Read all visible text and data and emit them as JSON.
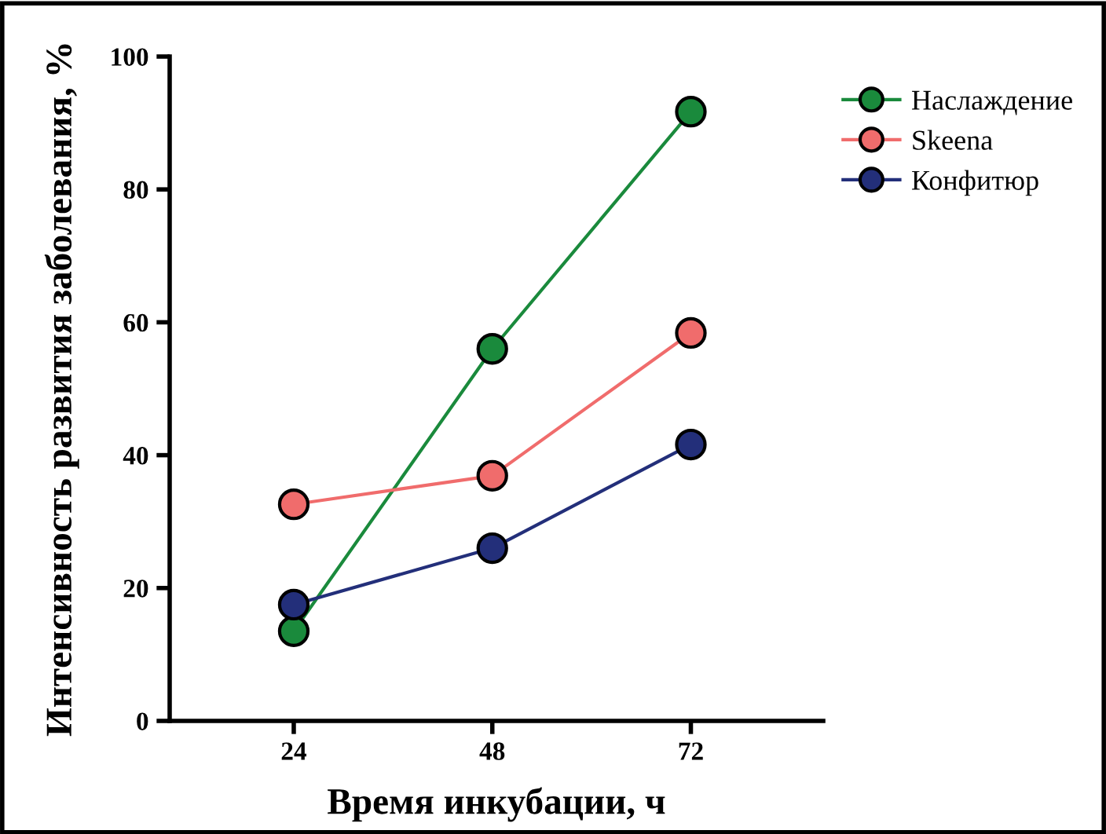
{
  "chart_data": {
    "type": "line",
    "xlabel": "Время инкубации, ч",
    "ylabel": "Интенсивность развития заболевания, %",
    "x": [
      24,
      48,
      72
    ],
    "xlim": [
      9,
      88
    ],
    "xticks": [
      24,
      48,
      72
    ],
    "ylim": [
      0,
      100
    ],
    "yticks": [
      0,
      20,
      40,
      60,
      80,
      100
    ],
    "series": [
      {
        "name": "Наслаждение",
        "color": "#1a8a3c",
        "values": [
          13.5,
          56,
          91.7
        ]
      },
      {
        "name": "Skeena",
        "color": "#f06c6c",
        "values": [
          32.6,
          36.9,
          58.4
        ]
      },
      {
        "name": "Конфитюр",
        "color": "#232f7a",
        "values": [
          17.5,
          26,
          41.6
        ]
      }
    ],
    "marker": "circle",
    "line_style": "solid",
    "legend": "top right",
    "grid": false
  }
}
